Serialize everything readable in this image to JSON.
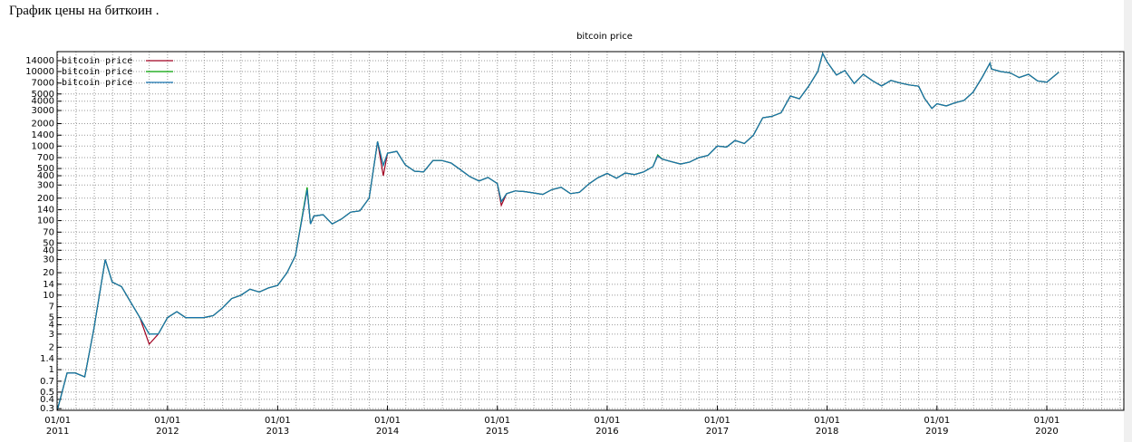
{
  "page_title": "График цены на биткоин .",
  "chart_data": {
    "type": "line",
    "title": "bitcoin price",
    "ylog": true,
    "grid": true,
    "x_minor_divisions": 6,
    "legend": "top-left",
    "xlim": [
      "2010-12-30",
      "2020-09-13"
    ],
    "ylim": [
      0.285,
      18500
    ],
    "xticks": [
      {
        "value": "2011-01-01",
        "label": "01/01 2011"
      },
      {
        "value": "2012-01-01",
        "label": "01/01 2012"
      },
      {
        "value": "2013-01-01",
        "label": "01/01 2013"
      },
      {
        "value": "2014-01-01",
        "label": "01/01 2014"
      },
      {
        "value": "2015-01-01",
        "label": "01/01 2015"
      },
      {
        "value": "2016-01-01",
        "label": "01/01 2016"
      },
      {
        "value": "2017-01-01",
        "label": "01/01 2017"
      },
      {
        "value": "2018-01-01",
        "label": "01/01 2018"
      },
      {
        "value": "2019-01-01",
        "label": "01/01 2019"
      },
      {
        "value": "2020-01-01",
        "label": "01/01 2020"
      }
    ],
    "yticks": [
      0.3,
      0.4,
      0.5,
      0.7,
      1,
      1.4,
      2,
      3,
      4,
      5,
      7,
      10,
      14,
      20,
      30,
      40,
      50,
      70,
      100,
      140,
      200,
      300,
      400,
      500,
      700,
      1000,
      1400,
      2000,
      3000,
      4000,
      5000,
      7000,
      10000,
      14000
    ],
    "x": [
      "2011-01-01",
      "2011-02-01",
      "2011-03-01",
      "2011-04-01",
      "2011-05-01",
      "2011-06-08",
      "2011-07-01",
      "2011-08-01",
      "2011-09-01",
      "2011-10-01",
      "2011-11-01",
      "2011-12-01",
      "2012-01-01",
      "2012-02-01",
      "2012-03-01",
      "2012-04-01",
      "2012-05-01",
      "2012-06-01",
      "2012-07-01",
      "2012-08-01",
      "2012-09-01",
      "2012-10-01",
      "2012-11-01",
      "2012-12-01",
      "2013-01-01",
      "2013-02-01",
      "2013-03-01",
      "2013-04-09",
      "2013-04-20",
      "2013-05-01",
      "2013-06-01",
      "2013-07-01",
      "2013-08-01",
      "2013-09-01",
      "2013-10-01",
      "2013-11-01",
      "2013-11-29",
      "2013-12-18",
      "2014-01-01",
      "2014-02-01",
      "2014-03-01",
      "2014-04-01",
      "2014-05-01",
      "2014-06-01",
      "2014-07-01",
      "2014-08-01",
      "2014-09-01",
      "2014-10-01",
      "2014-11-01",
      "2014-12-01",
      "2015-01-01",
      "2015-01-14",
      "2015-02-01",
      "2015-03-01",
      "2015-04-01",
      "2015-05-01",
      "2015-06-01",
      "2015-07-01",
      "2015-08-01",
      "2015-09-01",
      "2015-10-01",
      "2015-11-01",
      "2015-12-01",
      "2016-01-01",
      "2016-02-01",
      "2016-03-01",
      "2016-04-01",
      "2016-05-01",
      "2016-06-01",
      "2016-06-17",
      "2016-07-01",
      "2016-08-01",
      "2016-09-01",
      "2016-10-01",
      "2016-11-01",
      "2016-12-01",
      "2017-01-01",
      "2017-02-01",
      "2017-03-01",
      "2017-04-01",
      "2017-05-01",
      "2017-06-01",
      "2017-07-01",
      "2017-08-01",
      "2017-09-01",
      "2017-10-01",
      "2017-11-01",
      "2017-12-01",
      "2017-12-17",
      "2018-01-01",
      "2018-02-01",
      "2018-03-01",
      "2018-04-01",
      "2018-05-01",
      "2018-06-01",
      "2018-07-01",
      "2018-08-01",
      "2018-09-01",
      "2018-10-01",
      "2018-11-01",
      "2018-11-20",
      "2018-12-15",
      "2019-01-01",
      "2019-02-01",
      "2019-03-01",
      "2019-04-01",
      "2019-05-01",
      "2019-06-01",
      "2019-06-26",
      "2019-07-01",
      "2019-08-01",
      "2019-09-01",
      "2019-10-01",
      "2019-11-01",
      "2019-12-01",
      "2020-01-01",
      "2020-02-10"
    ],
    "series": [
      {
        "name": "bitcoin price",
        "color": "#a00020",
        "values": [
          0.3,
          0.9,
          0.9,
          0.8,
          3.5,
          30,
          15,
          13,
          8,
          5,
          2.2,
          3,
          5,
          6,
          5,
          5,
          5,
          5.3,
          6.7,
          9,
          10,
          12,
          11,
          12.5,
          13.5,
          20,
          34,
          260,
          90,
          115,
          120,
          90,
          105,
          130,
          135,
          200,
          1150,
          400,
          800,
          850,
          560,
          460,
          450,
          640,
          640,
          590,
          480,
          390,
          340,
          380,
          315,
          160,
          230,
          250,
          245,
          235,
          225,
          260,
          280,
          230,
          240,
          310,
          375,
          430,
          370,
          435,
          415,
          450,
          530,
          740,
          670,
          620,
          575,
          610,
          700,
          750,
          1000,
          970,
          1190,
          1080,
          1400,
          2400,
          2500,
          2800,
          4700,
          4300,
          6400,
          10000,
          17500,
          13500,
          9000,
          10300,
          6900,
          9200,
          7500,
          6400,
          7600,
          7000,
          6600,
          6350,
          4400,
          3200,
          3700,
          3450,
          3800,
          4100,
          5300,
          8500,
          13000,
          10800,
          10000,
          9600,
          8300,
          9200,
          7500,
          7200,
          9800
        ]
      },
      {
        "name": "bitcoin price",
        "color": "#00a000",
        "values": [
          0.3,
          0.9,
          0.9,
          0.8,
          3.5,
          30,
          15,
          13,
          8,
          5,
          3,
          3,
          5,
          6,
          5,
          5,
          5,
          5.3,
          6.7,
          9,
          10,
          12,
          11,
          12.5,
          13.5,
          20,
          34,
          280,
          90,
          115,
          120,
          90,
          105,
          130,
          135,
          200,
          1150,
          550,
          800,
          850,
          560,
          460,
          450,
          640,
          640,
          590,
          480,
          390,
          340,
          380,
          315,
          180,
          230,
          250,
          245,
          235,
          225,
          260,
          280,
          230,
          240,
          310,
          375,
          430,
          370,
          435,
          415,
          450,
          530,
          760,
          670,
          620,
          575,
          610,
          700,
          750,
          1000,
          970,
          1190,
          1080,
          1400,
          2400,
          2500,
          2800,
          4700,
          4300,
          6400,
          10000,
          17500,
          13500,
          9000,
          10300,
          6900,
          9200,
          7500,
          6400,
          7600,
          7000,
          6600,
          6350,
          4400,
          3200,
          3700,
          3450,
          3800,
          4100,
          5300,
          8500,
          13000,
          10800,
          10000,
          9600,
          8300,
          9200,
          7500,
          7200,
          9800
        ]
      },
      {
        "name": "bitcoin price",
        "color": "#1874b0",
        "values": [
          0.3,
          0.9,
          0.9,
          0.8,
          3.5,
          30,
          15,
          13,
          8,
          5,
          3,
          3,
          5,
          6,
          5,
          5,
          5,
          5.3,
          6.7,
          9,
          10,
          12,
          11,
          12.5,
          13.5,
          20,
          34,
          260,
          90,
          115,
          120,
          90,
          105,
          130,
          135,
          200,
          1150,
          550,
          800,
          850,
          560,
          460,
          450,
          640,
          640,
          590,
          480,
          390,
          340,
          380,
          315,
          180,
          230,
          250,
          245,
          235,
          225,
          260,
          280,
          230,
          240,
          310,
          375,
          430,
          370,
          435,
          415,
          450,
          530,
          740,
          670,
          620,
          575,
          610,
          700,
          750,
          1000,
          970,
          1190,
          1080,
          1400,
          2400,
          2500,
          2800,
          4700,
          4300,
          6400,
          10000,
          17500,
          13500,
          9000,
          10300,
          6900,
          9200,
          7500,
          6400,
          7600,
          7000,
          6600,
          6350,
          4400,
          3200,
          3700,
          3450,
          3800,
          4100,
          5300,
          8500,
          13000,
          10800,
          10000,
          9600,
          8300,
          9200,
          7500,
          7200,
          9800
        ]
      }
    ]
  }
}
